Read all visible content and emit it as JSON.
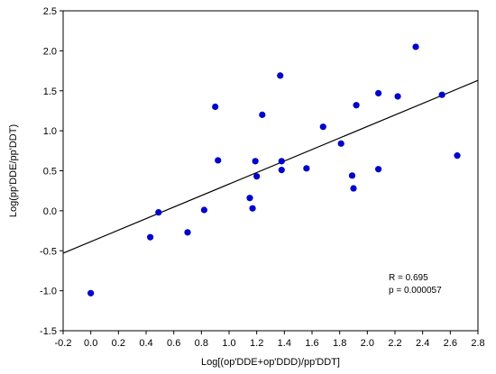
{
  "chart_data": {
    "type": "scatter",
    "xlabel": "Log[(op'DDE+op'DDD)/pp'DDT]",
    "ylabel": "Log(pp'DDE/pp'DDT)",
    "xlim": [
      -0.2,
      2.8
    ],
    "ylim": [
      -1.5,
      2.5
    ],
    "x_ticks": [
      -0.2,
      0.0,
      0.2,
      0.4,
      0.6,
      0.8,
      1.0,
      1.2,
      1.4,
      1.6,
      1.8,
      2.0,
      2.2,
      2.4,
      2.6,
      2.8
    ],
    "x_tick_labels": [
      "-0.2",
      "0.0",
      "0.2",
      "0.4",
      "0.6",
      "0.8",
      "1.0",
      "1.2",
      "1.4",
      "1.6",
      "1.8",
      "2.0",
      "2.2",
      "2.4",
      "2.6",
      "2.8"
    ],
    "y_ticks": [
      -1.5,
      -1.0,
      -0.5,
      0.0,
      0.5,
      1.0,
      1.5,
      2.0,
      2.5
    ],
    "y_tick_labels": [
      "-1.5",
      "-1.0",
      "-0.5",
      "0.0",
      "0.5",
      "1.0",
      "1.5",
      "2.0",
      "2.5"
    ],
    "grid": false,
    "point_color": "#0000cc",
    "line_color": "#000000",
    "points": [
      {
        "x": 0.0,
        "y": -1.03
      },
      {
        "x": 0.43,
        "y": -0.33
      },
      {
        "x": 0.49,
        "y": -0.02
      },
      {
        "x": 0.7,
        "y": -0.27
      },
      {
        "x": 0.82,
        "y": 0.01
      },
      {
        "x": 0.9,
        "y": 1.3
      },
      {
        "x": 0.92,
        "y": 0.63
      },
      {
        "x": 1.15,
        "y": 0.16
      },
      {
        "x": 1.17,
        "y": 0.03
      },
      {
        "x": 1.19,
        "y": 0.62
      },
      {
        "x": 1.2,
        "y": 0.43
      },
      {
        "x": 1.24,
        "y": 1.2
      },
      {
        "x": 1.37,
        "y": 1.69
      },
      {
        "x": 1.38,
        "y": 0.51
      },
      {
        "x": 1.38,
        "y": 0.62
      },
      {
        "x": 1.56,
        "y": 0.53
      },
      {
        "x": 1.68,
        "y": 1.05
      },
      {
        "x": 1.81,
        "y": 0.84
      },
      {
        "x": 1.89,
        "y": 0.44
      },
      {
        "x": 1.9,
        "y": 0.28
      },
      {
        "x": 1.92,
        "y": 1.32
      },
      {
        "x": 2.08,
        "y": 1.47
      },
      {
        "x": 2.08,
        "y": 0.52
      },
      {
        "x": 2.22,
        "y": 1.43
      },
      {
        "x": 2.35,
        "y": 2.05
      },
      {
        "x": 2.54,
        "y": 1.45
      },
      {
        "x": 2.65,
        "y": 0.69
      }
    ],
    "regression_line": {
      "x": [
        -0.2,
        2.8
      ],
      "y": [
        -0.53,
        1.63
      ]
    },
    "annotations": [
      "R = 0.695",
      "p = 0.000057"
    ]
  }
}
